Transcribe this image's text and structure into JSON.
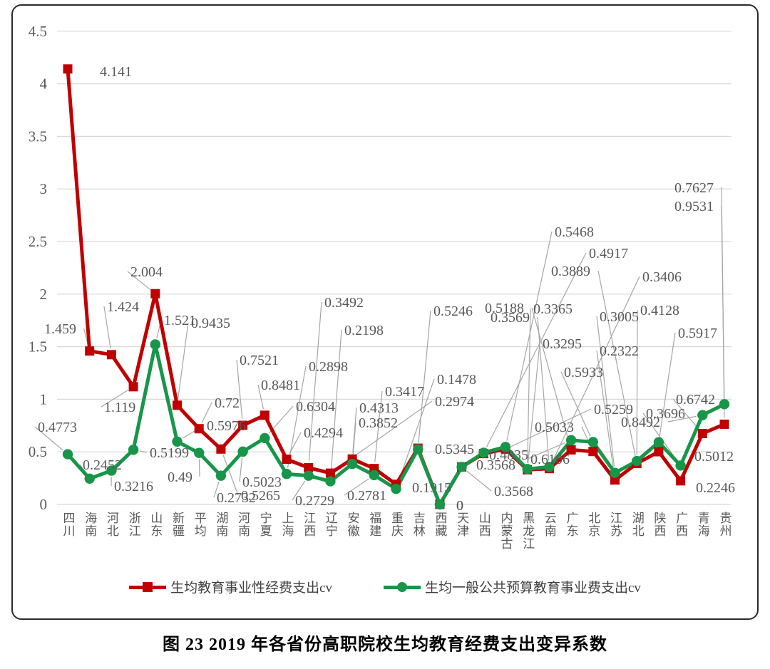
{
  "caption": "图 23  2019 年各省份高职院校生均教育经费支出变异系数",
  "chart_data": {
    "type": "line",
    "title": "图 23  2019 年各省份高职院校生均教育经费支出变异系数",
    "grid": true,
    "legend_position": "bottom",
    "xlabel": "",
    "ylabel": "",
    "y_axis": {
      "min": 0,
      "max": 4.5,
      "step": 0.5
    },
    "categories": [
      "四川",
      "海南",
      "河北",
      "浙江",
      "山东",
      "新疆",
      "平均",
      "湖南",
      "河南",
      "宁夏",
      "上海",
      "江西",
      "辽宁",
      "安徽",
      "福建",
      "重庆",
      "吉林",
      "西藏",
      "天津",
      "山西",
      "内蒙古",
      "黑龙江",
      "云南",
      "广东",
      "北京",
      "江苏",
      "湖北",
      "陕西",
      "广西",
      "青海",
      "贵州"
    ],
    "series": [
      {
        "name": "生均教育事业性经费支出cv",
        "color": "#c00000",
        "marker": "square",
        "values": [
          4.141,
          1.459,
          1.424,
          1.119,
          2.004,
          0.9435,
          0.72,
          0.5265,
          0.7521,
          0.8481,
          0.4294,
          0.3492,
          0.2974,
          0.4313,
          0.3417,
          0.1915,
          0.5345,
          0,
          0.3568,
          0.4835,
          0.5259,
          0.3295,
          0.3406,
          0.5188,
          0.5033,
          0.2322,
          0.3889,
          0.5012,
          0.2246,
          0.6742,
          0.7627
        ]
      },
      {
        "name": "生均一般公共预算教育事业费支出cv",
        "color": "#17964a",
        "marker": "circle",
        "values": [
          0.4773,
          0.2452,
          0.3216,
          0.5199,
          1.521,
          0.5976,
          0.49,
          0.2732,
          0.5023,
          0.6304,
          0.2898,
          0.2729,
          0.2198,
          0.3852,
          0.2781,
          0.1478,
          0.5246,
          0,
          0.3568,
          0.4917,
          0.5468,
          0.3365,
          0.3569,
          0.6106,
          0.5933,
          0.3005,
          0.4128,
          0.5917,
          0.3696,
          0.8492,
          0.9531
        ]
      }
    ]
  },
  "colors": {
    "grid": "#d9d9d9",
    "axis_text": "#595959",
    "label_text": "#595959",
    "leader_line": "#a6a6a6"
  }
}
